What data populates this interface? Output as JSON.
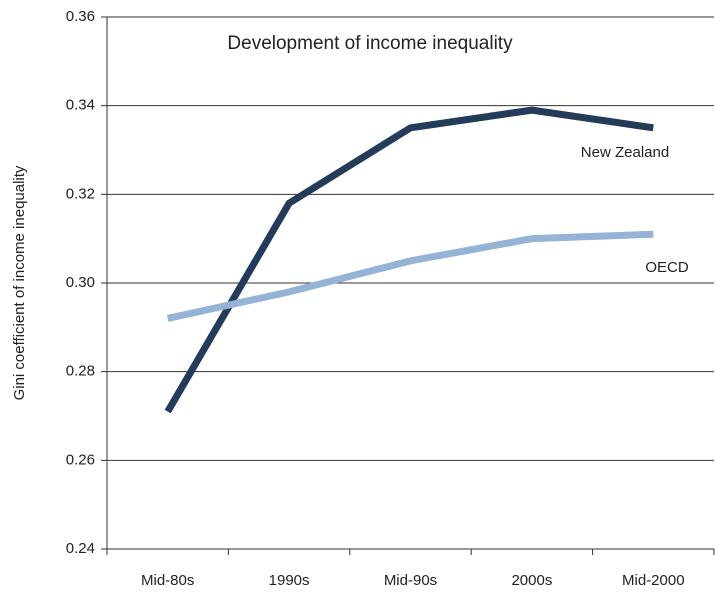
{
  "chart_data": {
    "type": "line",
    "title": "Development of income inequality",
    "ylabel": "Gini coefficient of income inequality",
    "categories": [
      "Mid-80s",
      "1990s",
      "Mid-90s",
      "2000s",
      "Mid-2000"
    ],
    "series": [
      {
        "name": "New Zealand",
        "color": "#243b5a",
        "values": [
          0.271,
          0.318,
          0.335,
          0.339,
          0.335
        ]
      },
      {
        "name": "OECD",
        "color": "#95b3d7",
        "values": [
          0.292,
          0.298,
          0.305,
          0.31,
          0.311
        ]
      }
    ],
    "ylim": [
      0.24,
      0.36
    ],
    "yticks": [
      {
        "value": 0.24,
        "label": "0.24"
      },
      {
        "value": 0.26,
        "label": "0.26"
      },
      {
        "value": 0.28,
        "label": "0.28"
      },
      {
        "value": 0.3,
        "label": "0.30"
      },
      {
        "value": 0.32,
        "label": "0.32"
      },
      {
        "value": 0.34,
        "label": "0.34"
      },
      {
        "value": 0.36,
        "label": "0.36"
      }
    ],
    "grid": true
  }
}
